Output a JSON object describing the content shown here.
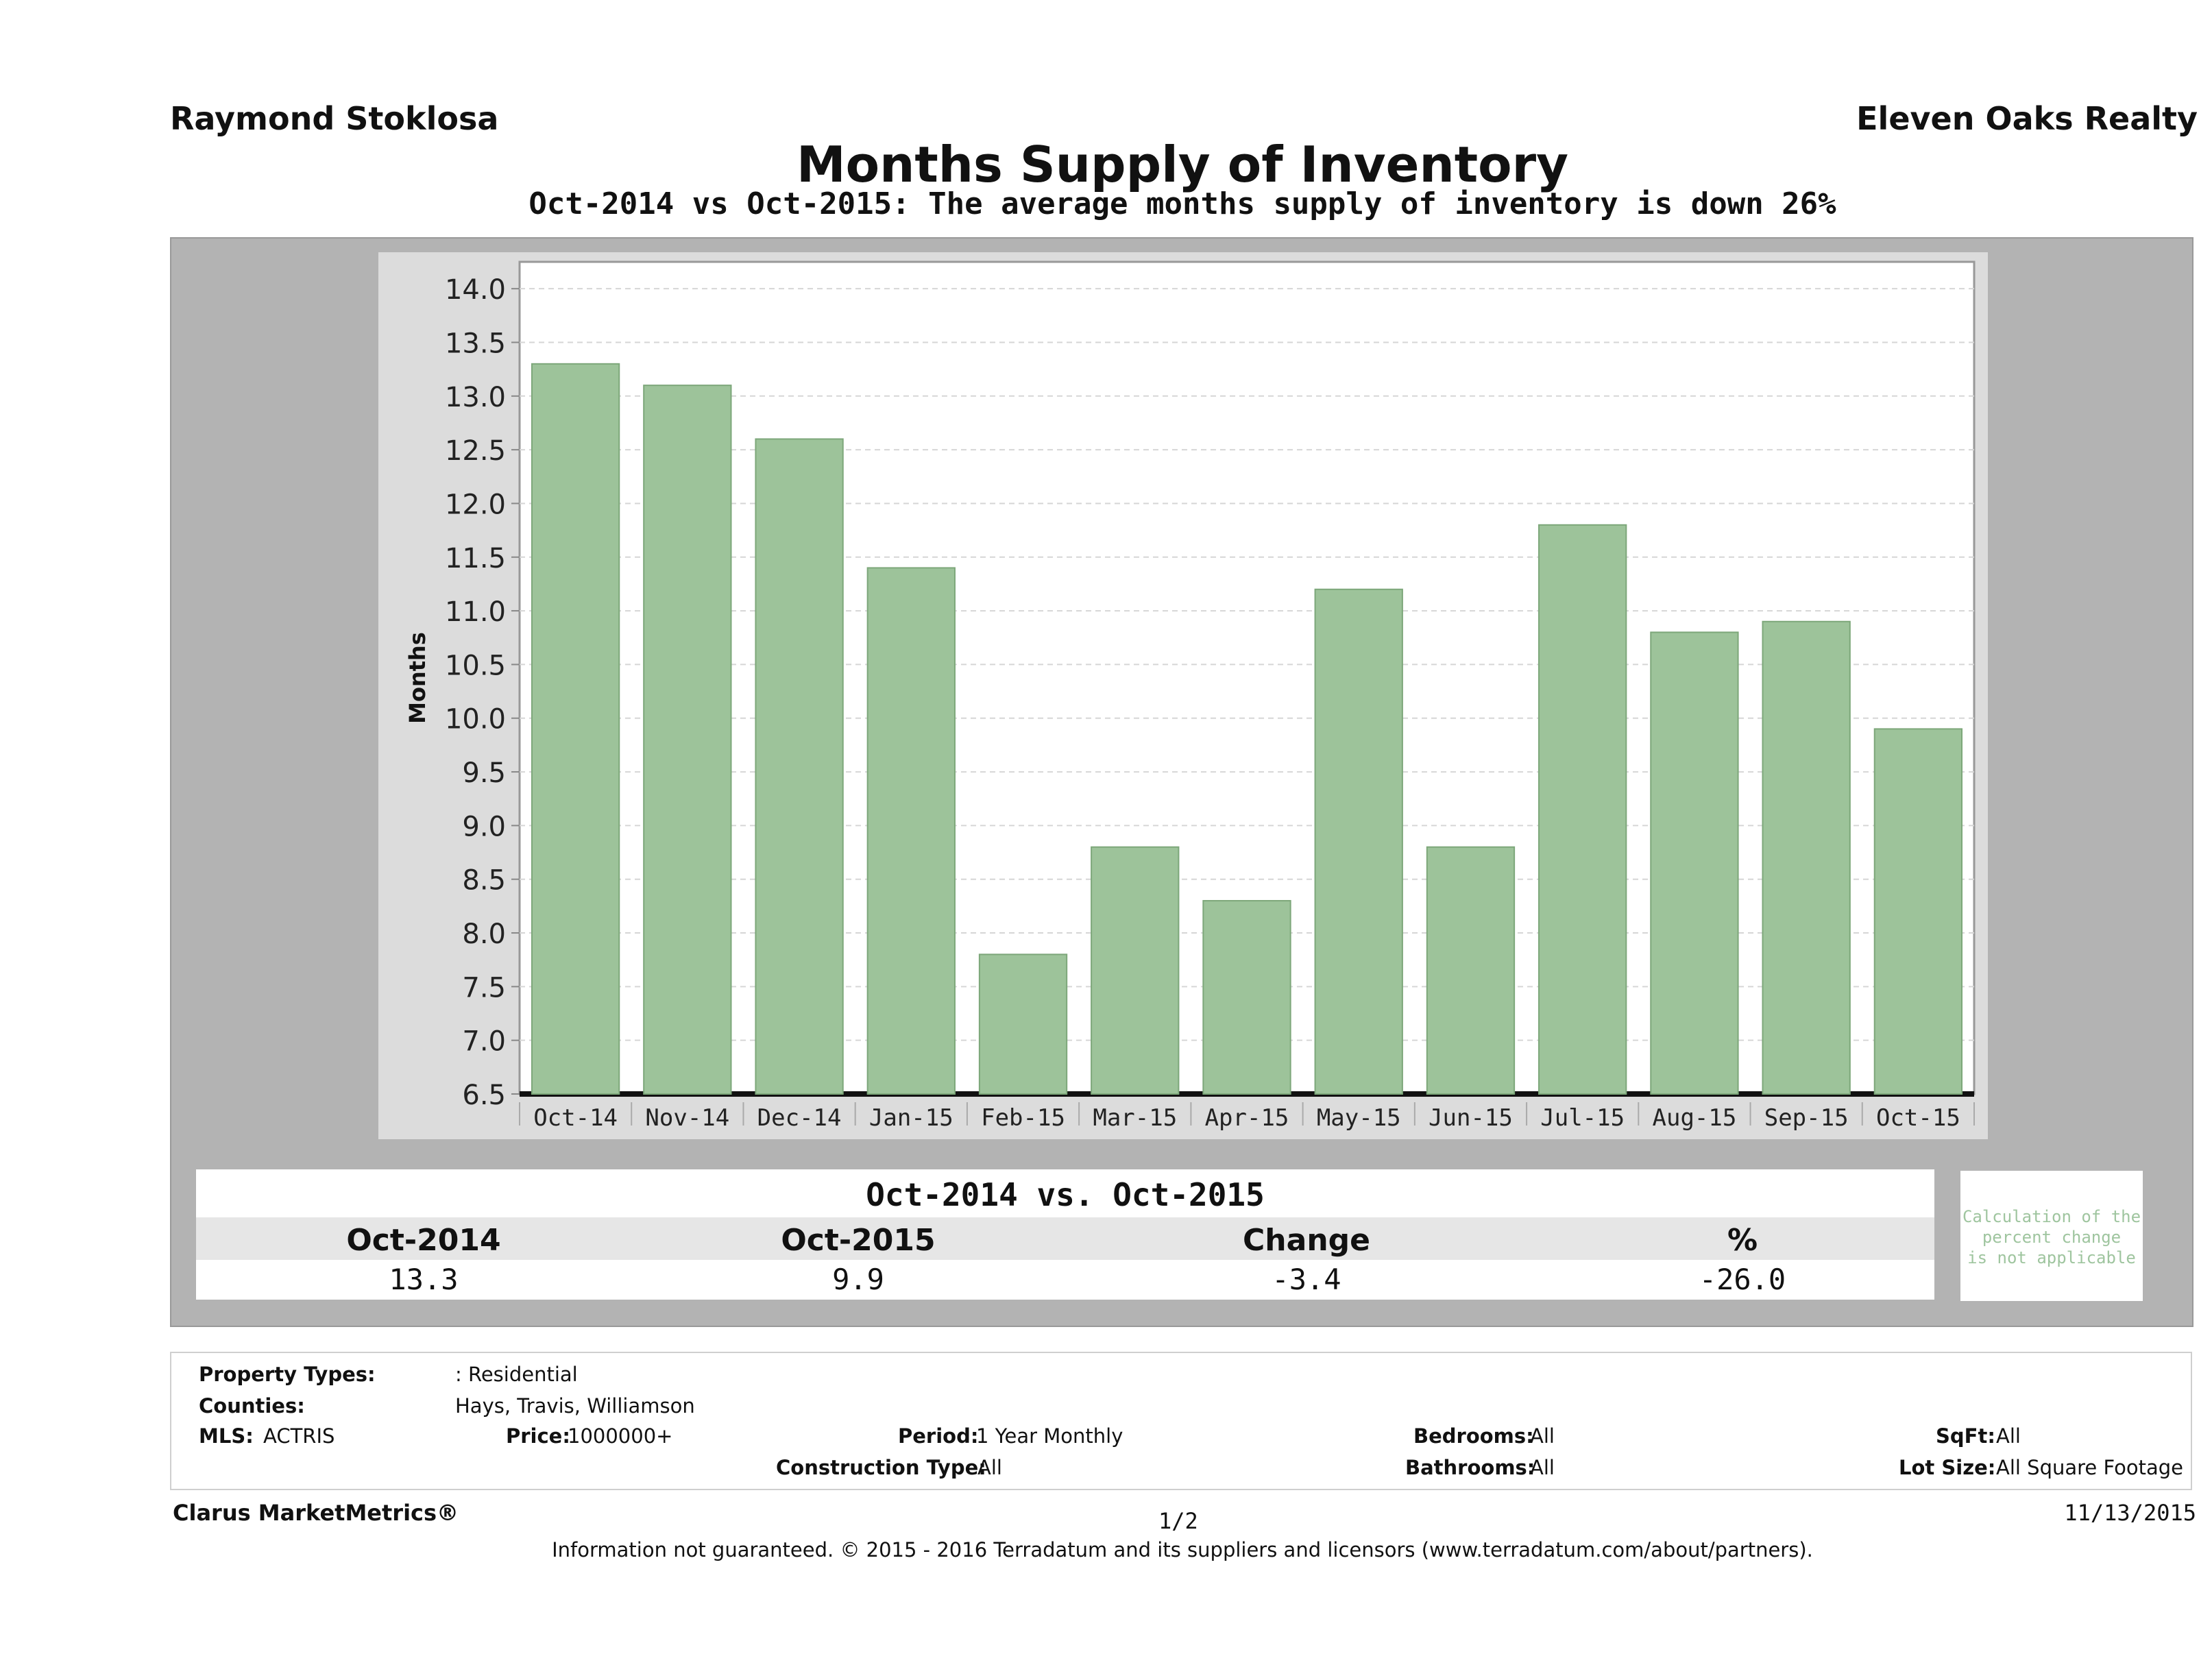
{
  "header": {
    "agent": "Raymond Stoklosa",
    "company": "Eleven Oaks Realty",
    "title": "Months Supply of Inventory",
    "subtitle": "Oct-2014 vs Oct-2015: The average months supply of inventory is down 26%"
  },
  "chart_data": {
    "type": "bar",
    "title": "Months Supply of Inventory",
    "xlabel": "",
    "ylabel": "Months",
    "ylim": [
      6.5,
      14.25
    ],
    "yticks": [
      "14.0",
      "13.5",
      "13.0",
      "12.5",
      "12.0",
      "11.5",
      "11.0",
      "10.5",
      "10.0",
      "9.5",
      "9.0",
      "8.5",
      "8.0",
      "7.5",
      "7.0",
      "6.5"
    ],
    "grid": true,
    "categories": [
      "Oct-14",
      "Nov-14",
      "Dec-14",
      "Jan-15",
      "Feb-15",
      "Mar-15",
      "Apr-15",
      "May-15",
      "Jun-15",
      "Jul-15",
      "Aug-15",
      "Sep-15",
      "Oct-15"
    ],
    "values": [
      13.3,
      13.1,
      12.6,
      11.4,
      7.8,
      8.8,
      8.3,
      11.2,
      8.8,
      11.8,
      10.8,
      10.9,
      9.9
    ],
    "bar_color": "#9dc39a"
  },
  "summary": {
    "title": "Oct-2014 vs. Oct-2015",
    "headers": [
      "Oct-2014",
      "Oct-2015",
      "Change",
      "%"
    ],
    "values": [
      "13.3",
      "9.9",
      "-3.4",
      "-26.0"
    ],
    "note_lines": [
      "Calculation of the",
      "percent change",
      "is not applicable"
    ]
  },
  "filters": {
    "property_types_label": "Property Types:",
    "property_types_value": ": Residential",
    "counties_label": "Counties:",
    "counties_value": "Hays, Travis, Williamson",
    "mls_label": "MLS:",
    "mls_value": "ACTRIS",
    "price_label": "Price:",
    "price_value": "1000000+",
    "period_label": "Period:",
    "period_value": "1 Year Monthly",
    "construction_label": "Construction Type:",
    "construction_value": "All",
    "bedrooms_label": "Bedrooms:",
    "bedrooms_value": "All",
    "bathrooms_label": "Bathrooms:",
    "bathrooms_value": "All",
    "sqft_label": "SqFt:",
    "sqft_value": "All",
    "lotsize_label": "Lot Size:",
    "lotsize_value": "All Square Footage"
  },
  "footer": {
    "brand": "Clarus MarketMetrics®",
    "page": "1/2",
    "date": "11/13/2015",
    "disclaimer": "Information not guaranteed. © 2015 - 2016 Terradatum and its suppliers and licensors (www.terradatum.com/about/partners)."
  }
}
